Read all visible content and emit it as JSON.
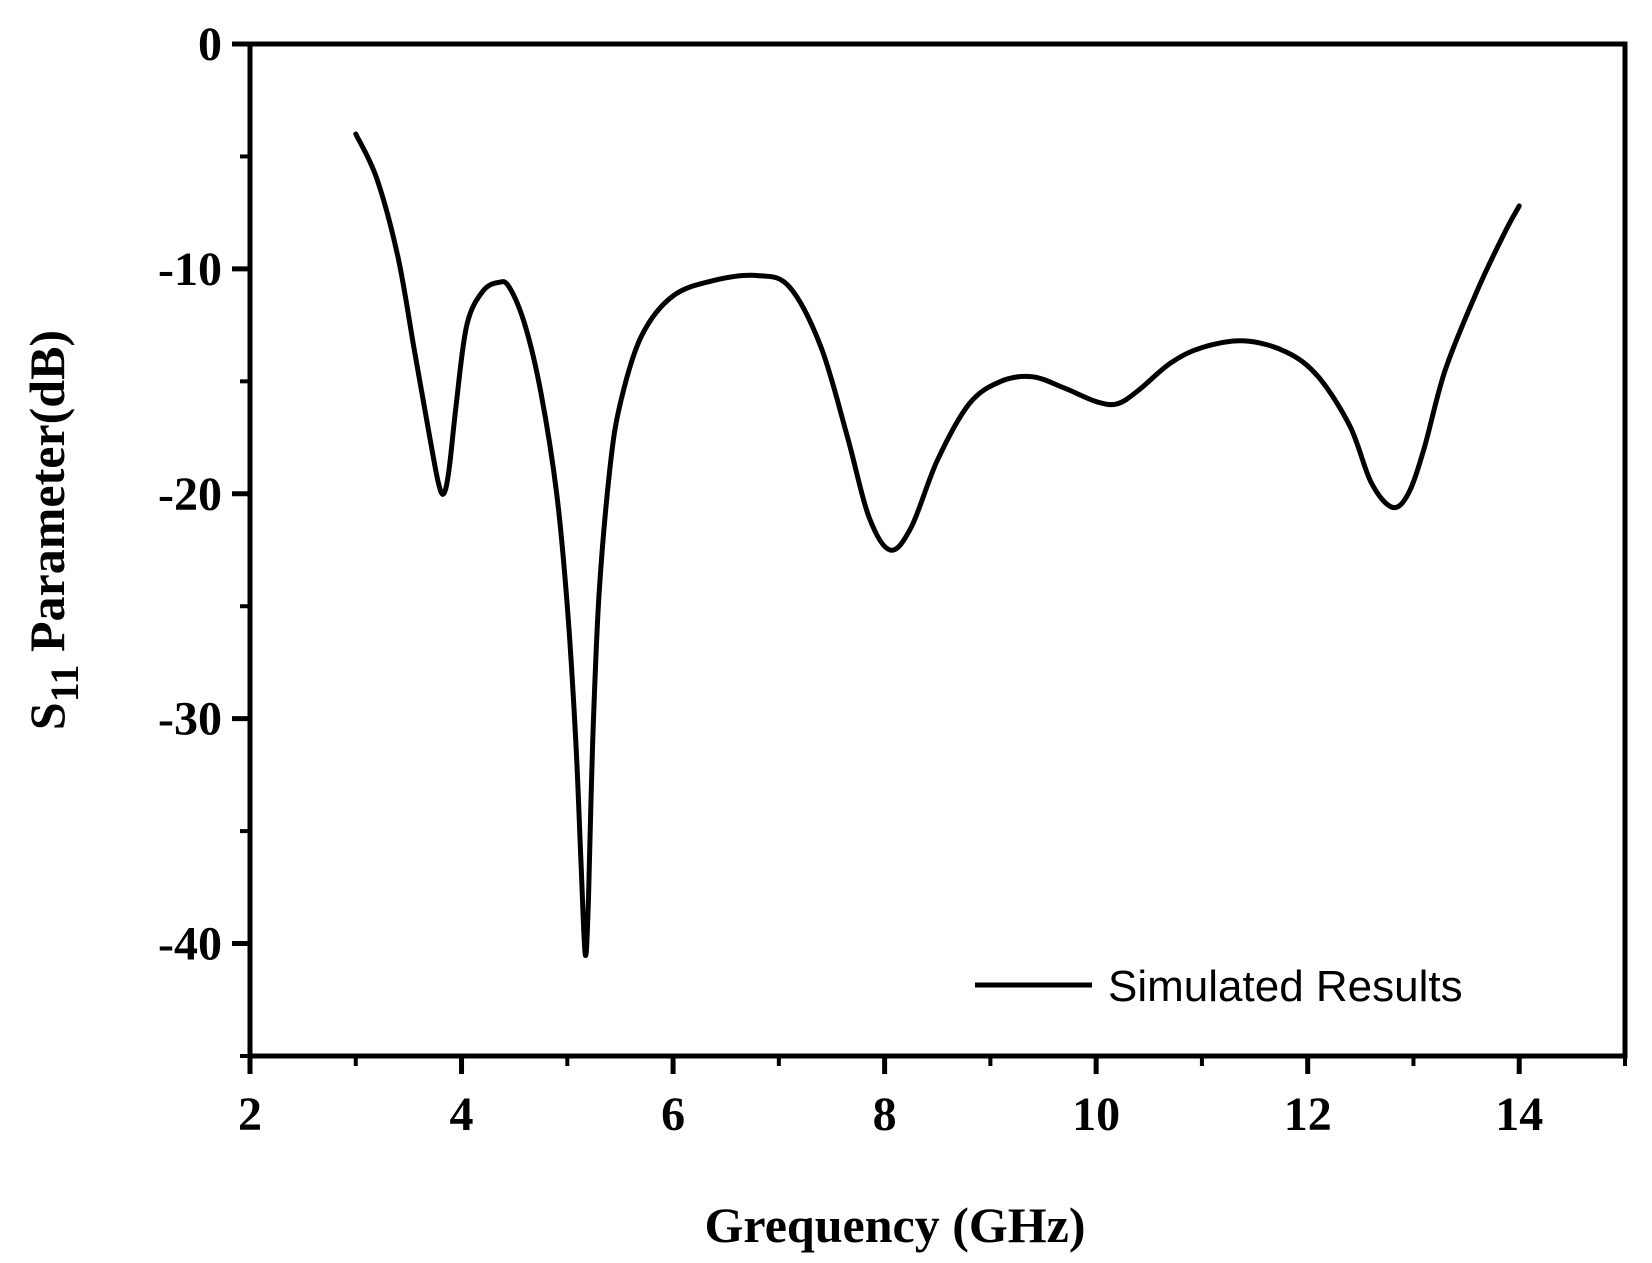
{
  "chart_data": {
    "type": "line",
    "title": "",
    "xlabel": "Grequency (GHz)",
    "ylabel_main": "S",
    "ylabel_sub": "11",
    "ylabel_rest": " Parameter(dB)",
    "xlim": [
      2,
      15
    ],
    "ylim": [
      -45,
      0
    ],
    "xticks": [
      2,
      4,
      6,
      8,
      10,
      12,
      14
    ],
    "xtick_labels": [
      "2",
      "4",
      "6",
      "8",
      "10",
      "12",
      "14"
    ],
    "yticks": [
      0,
      -10,
      -20,
      -30,
      -40
    ],
    "ytick_labels": [
      "0",
      "-10",
      "-20",
      "-30",
      "-40"
    ],
    "grid": false,
    "legend_position": "bottom-right",
    "line_color": "#000000",
    "series": [
      {
        "name": "Simulated Results",
        "x": [
          3.0,
          3.2,
          3.4,
          3.55,
          3.7,
          3.78,
          3.83,
          3.88,
          3.95,
          4.05,
          4.2,
          4.35,
          4.45,
          4.6,
          4.75,
          4.9,
          5.0,
          5.08,
          5.13,
          5.17,
          5.2,
          5.24,
          5.3,
          5.4,
          5.5,
          5.7,
          6.0,
          6.4,
          6.8,
          7.1,
          7.4,
          7.65,
          7.85,
          8.05,
          8.25,
          8.5,
          8.8,
          9.1,
          9.4,
          9.7,
          10.0,
          10.2,
          10.4,
          10.7,
          11.0,
          11.4,
          11.8,
          12.1,
          12.4,
          12.6,
          12.8,
          12.95,
          13.1,
          13.3,
          13.6,
          13.85,
          14.0
        ],
        "y": [
          -4.0,
          -6.0,
          -9.5,
          -13.5,
          -17.5,
          -19.5,
          -20.0,
          -19.0,
          -16.0,
          -12.5,
          -11.0,
          -10.6,
          -10.8,
          -12.5,
          -15.5,
          -20.0,
          -25.0,
          -31.0,
          -36.5,
          -40.5,
          -38.0,
          -31.0,
          -24.5,
          -19.0,
          -16.0,
          -13.0,
          -11.2,
          -10.5,
          -10.3,
          -10.8,
          -13.5,
          -17.5,
          -21.0,
          -22.5,
          -21.5,
          -18.5,
          -16.0,
          -15.0,
          -14.8,
          -15.3,
          -15.9,
          -16.0,
          -15.4,
          -14.2,
          -13.5,
          -13.2,
          -13.7,
          -14.8,
          -17.0,
          -19.5,
          -20.6,
          -20.0,
          -18.0,
          -14.5,
          -11.0,
          -8.5,
          -7.2
        ]
      }
    ]
  }
}
